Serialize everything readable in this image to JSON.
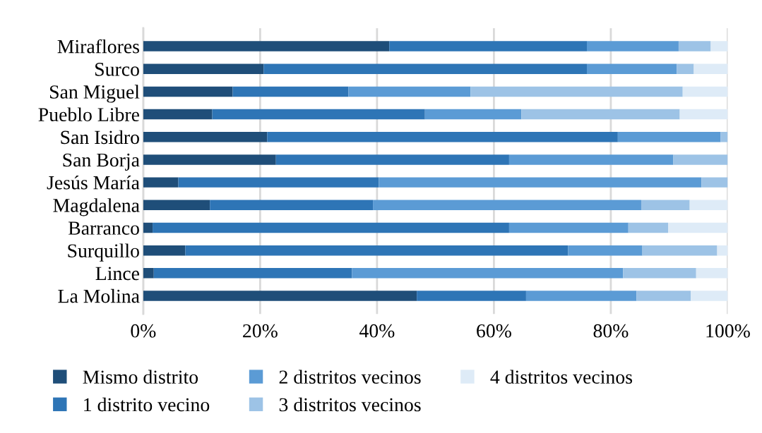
{
  "chart_data": {
    "type": "bar",
    "orientation": "horizontal",
    "stacked": true,
    "categories": [
      "Miraflores",
      "Surco",
      "San Miguel",
      "Pueblo Libre",
      "San Isidro",
      "San Borja",
      "Jesús María",
      "Magdalena",
      "Barranco",
      "Surquillo",
      "Lince",
      "La Molina"
    ],
    "series": [
      {
        "name": "Mismo distrito",
        "color": "#1f4e79",
        "values": [
          42.1,
          20.6,
          15.3,
          11.8,
          21.2,
          22.7,
          6.0,
          11.4,
          1.6,
          7.2,
          1.8,
          46.8
        ]
      },
      {
        "name": "1 distrito vecino",
        "color": "#2e75b6",
        "values": [
          33.8,
          55.3,
          19.8,
          36.4,
          60.0,
          39.9,
          34.3,
          27.9,
          61.0,
          65.5,
          33.9,
          18.7
        ]
      },
      {
        "name": "2 distritos vecinos",
        "color": "#5b9bd5",
        "values": [
          15.7,
          15.4,
          20.9,
          16.5,
          17.6,
          28.1,
          55.2,
          45.9,
          20.4,
          12.7,
          46.4,
          18.9
        ]
      },
      {
        "name": "3 distritos vecinos",
        "color": "#9dc3e6",
        "values": [
          5.5,
          2.9,
          36.3,
          27.1,
          1.2,
          9.3,
          4.5,
          8.3,
          6.8,
          12.8,
          12.5,
          9.3
        ]
      },
      {
        "name": "4 distritos vecinos",
        "color": "#deebf7",
        "values": [
          2.9,
          5.8,
          7.7,
          8.2,
          0,
          0,
          0,
          6.5,
          10.2,
          1.8,
          5.4,
          6.3
        ]
      }
    ],
    "xlim": [
      0,
      100
    ],
    "xticks": [
      {
        "value": 0,
        "label": "0%"
      },
      {
        "value": 20,
        "label": "20%"
      },
      {
        "value": 40,
        "label": "40%"
      },
      {
        "value": 60,
        "label": "60%"
      },
      {
        "value": 80,
        "label": "80%"
      },
      {
        "value": 100,
        "label": "100%"
      }
    ],
    "grid": "x",
    "legend": "bottom"
  }
}
